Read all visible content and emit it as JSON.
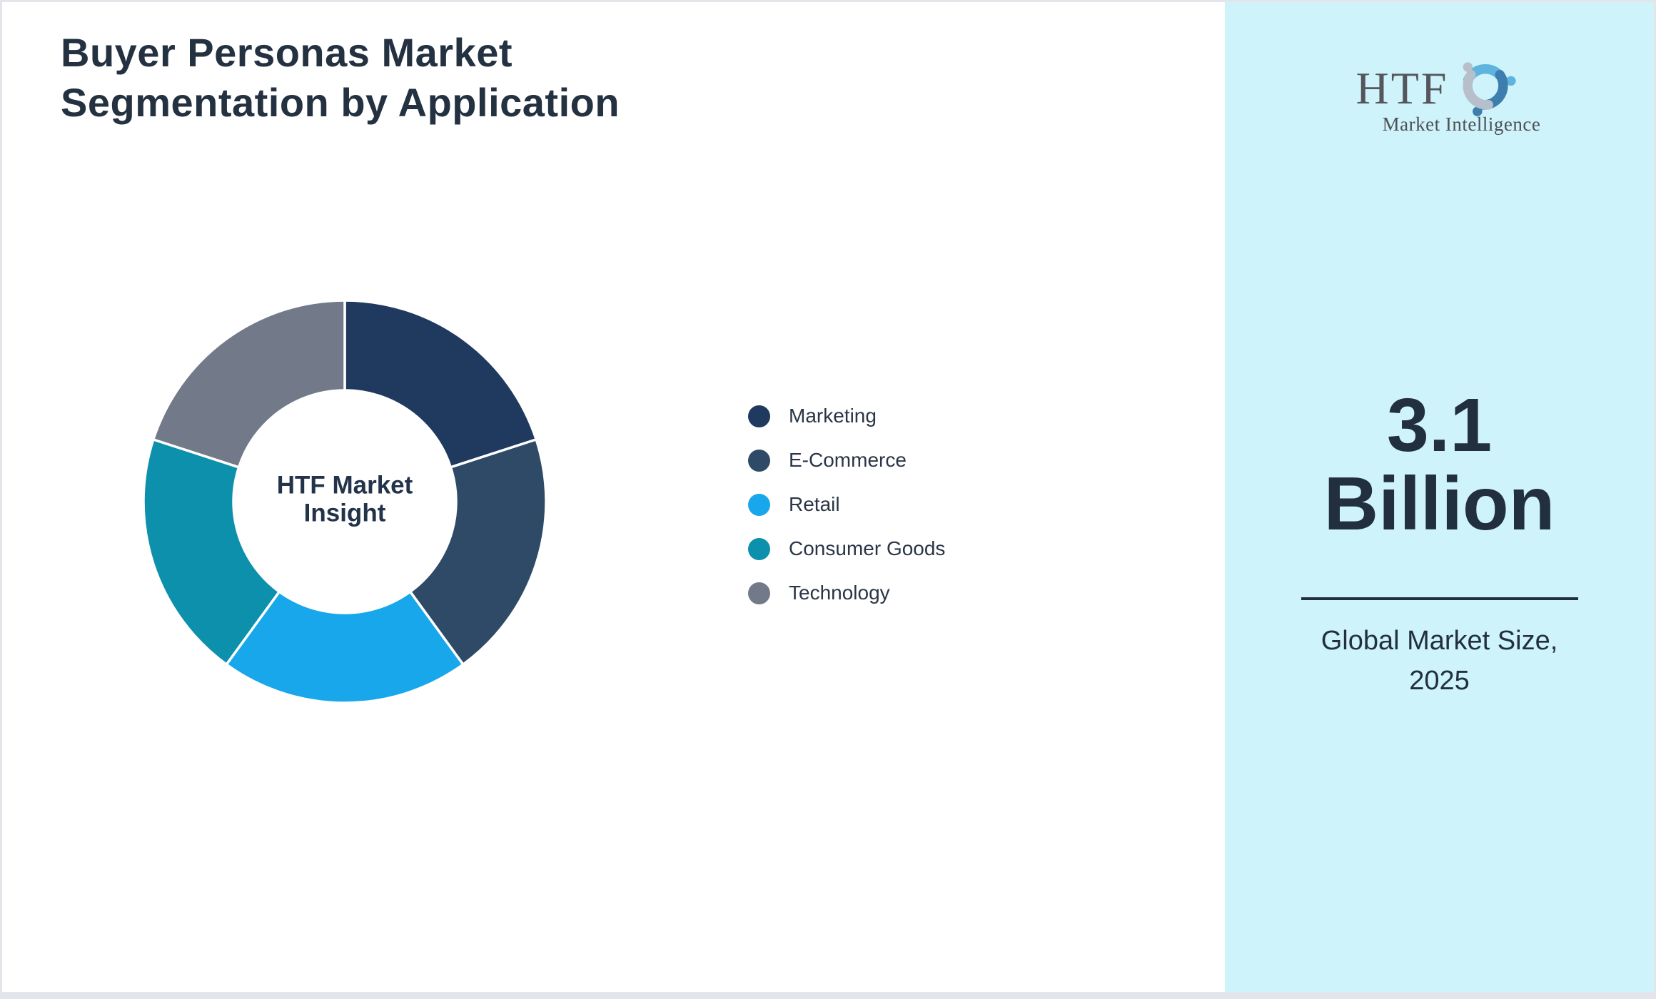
{
  "header": {
    "title": "Buyer Personas Market Segmentation by Application"
  },
  "chart_data": {
    "type": "pie",
    "subtype": "donut",
    "title": "Buyer Personas Market Segmentation by Application",
    "center_label": "HTF Market Insight",
    "legend_position": "right",
    "categories": [
      "Marketing",
      "E-Commerce",
      "Retail",
      "Consumer Goods",
      "Technology"
    ],
    "values": [
      20,
      20,
      20,
      20,
      20
    ],
    "colors": [
      "#20395E",
      "#2F4A66",
      "#17A7EA",
      "#0C90AC",
      "#727A8A"
    ]
  },
  "side_panel": {
    "background_color": "#CFF3FB",
    "logo": {
      "name": "HTF",
      "tagline": "Market Intelligence",
      "icon": "three-figures-swirl-icon"
    },
    "market_size": {
      "value": "3.1 Billion",
      "caption": "Global Market Size, 2025"
    }
  }
}
